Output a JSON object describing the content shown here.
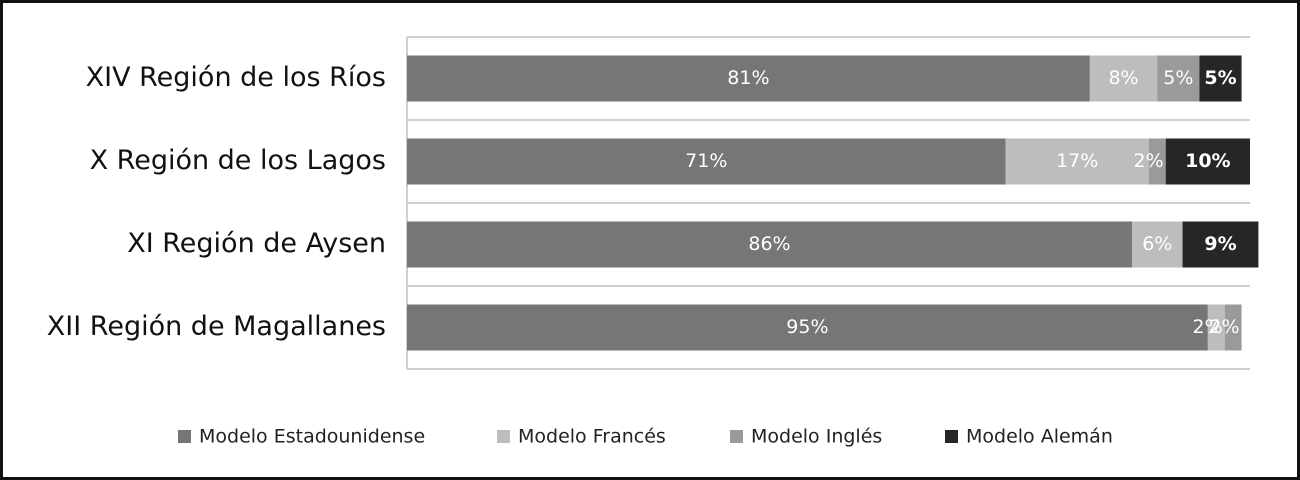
{
  "chart_data": {
    "type": "stacked-bar-horizontal",
    "categories": [
      "XIV Región de los Ríos",
      "X Región de los Lagos",
      "XI Región de Aysen",
      "XII Región de Magallanes"
    ],
    "series": [
      {
        "name": "Modelo Estadounidense",
        "color": "#767676",
        "values": [
          81,
          71,
          86,
          95
        ],
        "value_labels": [
          "81%",
          "71%",
          "86%",
          "95%"
        ]
      },
      {
        "name": "Modelo Francés",
        "color": "#bdbdbd",
        "values": [
          8,
          17,
          6,
          2
        ],
        "value_labels": [
          "8%",
          "17%",
          "6%",
          "2%"
        ]
      },
      {
        "name": "Modelo Inglés",
        "color": "#9a9a9a",
        "values": [
          5,
          2,
          null,
          2
        ],
        "value_labels": [
          "5%",
          "2%",
          null,
          "2%"
        ]
      },
      {
        "name": "Modelo Alemán",
        "color": "#262626",
        "values": [
          5,
          10,
          9,
          null
        ],
        "value_labels": [
          "5%",
          "10%",
          "9%",
          null
        ]
      }
    ],
    "xlim": [
      0,
      100
    ],
    "legend": "bottom"
  }
}
